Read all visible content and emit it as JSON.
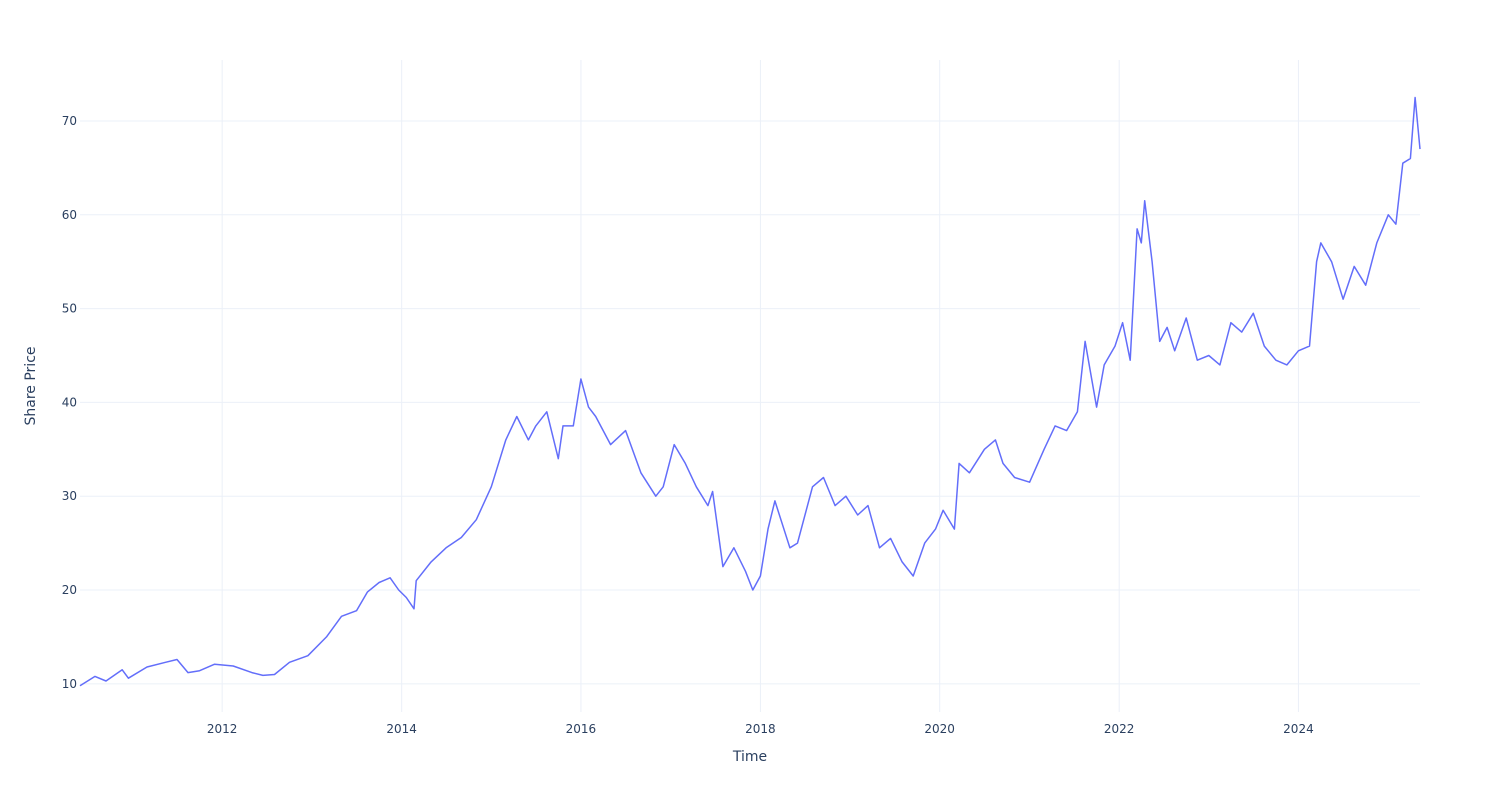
{
  "chart_data": {
    "type": "line",
    "title": "",
    "xlabel": "Time",
    "ylabel": "Share Price",
    "x_type": "date",
    "xlim": [
      "2010-06-01",
      "2025-05-10"
    ],
    "ylim": [
      7,
      76.5
    ],
    "x_ticks": [
      "2012",
      "2014",
      "2016",
      "2018",
      "2020",
      "2022",
      "2024"
    ],
    "y_ticks": [
      10,
      20,
      30,
      40,
      50,
      60,
      70
    ],
    "grid": true,
    "legend": "none",
    "colors": {
      "line": "#636efa",
      "grid": "#ebf0f8",
      "text": "#2a3f5f"
    },
    "series": [
      {
        "x": [
          "2010-06-01",
          "2010-08-01",
          "2010-09-15",
          "2010-11-20",
          "2010-12-15",
          "2011-03-01",
          "2011-05-15",
          "2011-07-01",
          "2011-08-15",
          "2011-10-01",
          "2011-12-01",
          "2012-02-15",
          "2012-05-01",
          "2012-06-15",
          "2012-08-01",
          "2012-10-01",
          "2012-12-15",
          "2013-03-01",
          "2013-05-01",
          "2013-07-01",
          "2013-08-15",
          "2013-10-01",
          "2013-11-15",
          "2013-12-20",
          "2014-01-20",
          "2014-02-20",
          "2014-03-01",
          "2014-05-01",
          "2014-07-01",
          "2014-09-01",
          "2014-11-01",
          "2015-01-01",
          "2015-03-01",
          "2015-04-15",
          "2015-06-01",
          "2015-07-01",
          "2015-08-15",
          "2015-10-01",
          "2015-10-20",
          "2015-12-01",
          "2016-01-01",
          "2016-02-01",
          "2016-03-01",
          "2016-05-01",
          "2016-07-01",
          "2016-09-01",
          "2016-11-01",
          "2016-12-01",
          "2017-01-15",
          "2017-03-01",
          "2017-04-15",
          "2017-06-01",
          "2017-06-20",
          "2017-08-01",
          "2017-09-15",
          "2017-11-01",
          "2017-12-01",
          "2018-01-01",
          "2018-02-01",
          "2018-03-01",
          "2018-05-01",
          "2018-06-01",
          "2018-08-01",
          "2018-09-15",
          "2018-11-01",
          "2018-12-15",
          "2019-02-01",
          "2019-03-15",
          "2019-05-01",
          "2019-06-15",
          "2019-08-01",
          "2019-09-15",
          "2019-11-01",
          "2019-12-15",
          "2020-01-15",
          "2020-03-01",
          "2020-03-20",
          "2020-05-01",
          "2020-07-01",
          "2020-08-15",
          "2020-09-15",
          "2020-11-01",
          "2021-01-01",
          "2021-03-01",
          "2021-04-15",
          "2021-06-01",
          "2021-07-15",
          "2021-08-15",
          "2021-10-01",
          "2021-11-01",
          "2021-12-15",
          "2022-01-15",
          "2022-02-15",
          "2022-03-15",
          "2022-04-01",
          "2022-04-15",
          "2022-05-15",
          "2022-06-15",
          "2022-07-15",
          "2022-08-15",
          "2022-10-01",
          "2022-11-15",
          "2023-01-01",
          "2023-02-15",
          "2023-04-01",
          "2023-05-15",
          "2023-07-01",
          "2023-08-15",
          "2023-10-01",
          "2023-11-15",
          "2024-01-01",
          "2024-02-15",
          "2024-03-15",
          "2024-04-01",
          "2024-05-15",
          "2024-07-01",
          "2024-08-15",
          "2024-10-01",
          "2024-11-15",
          "2025-01-01",
          "2025-02-01",
          "2025-03-01",
          "2025-04-01",
          "2025-04-20",
          "2025-05-10"
        ],
        "y": [
          9.8,
          10.8,
          10.3,
          11.5,
          10.6,
          11.8,
          12.3,
          12.6,
          11.2,
          11.4,
          12.1,
          11.9,
          11.2,
          10.9,
          11.0,
          12.3,
          13.0,
          15.0,
          17.2,
          17.8,
          19.8,
          20.8,
          21.3,
          20.0,
          19.2,
          18.0,
          21.0,
          23.0,
          24.5,
          25.6,
          27.5,
          31.0,
          36.0,
          38.5,
          36.0,
          37.5,
          39.0,
          34.0,
          37.5,
          37.5,
          42.5,
          39.5,
          38.5,
          35.5,
          37.0,
          32.5,
          30.0,
          31.0,
          35.5,
          33.5,
          31.0,
          29.0,
          30.5,
          22.5,
          24.5,
          22.0,
          20.0,
          21.5,
          26.5,
          29.5,
          24.5,
          25.0,
          31.0,
          32.0,
          29.0,
          30.0,
          28.0,
          29.0,
          24.5,
          25.5,
          23.0,
          21.5,
          25.0,
          26.5,
          28.5,
          26.5,
          33.5,
          32.5,
          35.0,
          36.0,
          33.5,
          32.0,
          31.5,
          35.0,
          37.5,
          37.0,
          39.0,
          46.5,
          39.5,
          44.0,
          46.0,
          48.5,
          44.5,
          58.5,
          57.0,
          61.5,
          55.0,
          46.5,
          48.0,
          45.5,
          49.0,
          44.5,
          45.0,
          44.0,
          48.5,
          47.5,
          49.5,
          46.0,
          44.5,
          44.0,
          45.5,
          46.0,
          55.0,
          57.0,
          55.0,
          51.0,
          54.5,
          52.5,
          57.0,
          60.0,
          59.0,
          65.5,
          66.0,
          72.5,
          67.0
        ]
      }
    ]
  }
}
